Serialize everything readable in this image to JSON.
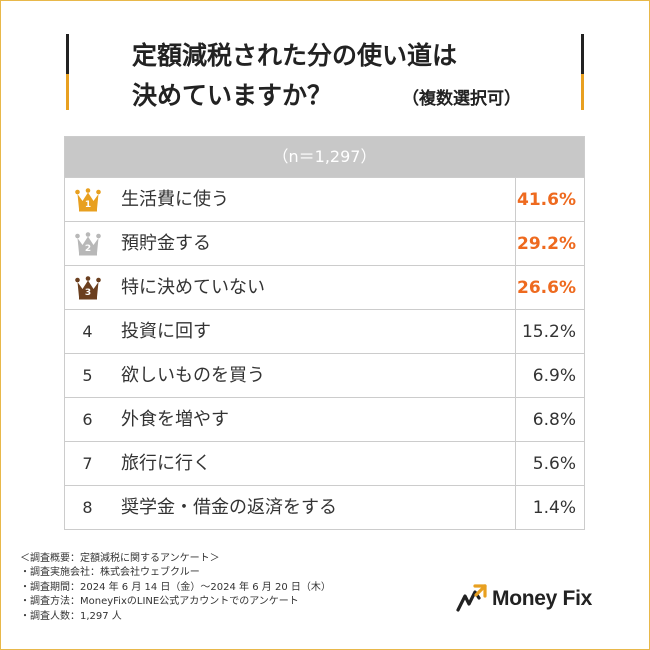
{
  "title": {
    "line1": "定額減税された分の使い道は",
    "line2": "決めていますか？",
    "note": "（複数選択可）"
  },
  "chart_data": {
    "type": "table",
    "header": "（n＝1,297）",
    "rows": [
      {
        "rank": "1",
        "label": "生活費に使う",
        "value": "41.6%"
      },
      {
        "rank": "2",
        "label": "預貯金する",
        "value": "29.2%"
      },
      {
        "rank": "3",
        "label": "特に決めていない",
        "value": "26.6%"
      },
      {
        "rank": "4",
        "label": "投資に回す",
        "value": "15.2%"
      },
      {
        "rank": "5",
        "label": "欲しいものを買う",
        "value": "6.9%"
      },
      {
        "rank": "6",
        "label": "外食を増やす",
        "value": "6.8%"
      },
      {
        "rank": "7",
        "label": "旅行に行く",
        "value": "5.6%"
      },
      {
        "rank": "8",
        "label": "奨学金・借金の返済をする",
        "value": "1.4%"
      }
    ],
    "values": [
      41.6,
      29.2,
      26.6,
      15.2,
      6.9,
      6.8,
      5.6,
      1.4
    ]
  },
  "notes": [
    "＜調査概要：定額減税に関するアンケート＞",
    "・調査実施会社：株式会社ウェブクルー",
    "・調査期間：2024 年 6 月 14 日（金）～2024 年 6 月 20 日（木）",
    "・調査方法：MoneyFixのLINE公式アカウントでのアンケート",
    "・調査人数：1,297 人"
  ],
  "logo": {
    "text": "Money Fix"
  },
  "colors": {
    "accent": "#ee6a1f",
    "gold": "#e8a020",
    "silver": "#b8b8b8",
    "bronze": "#6b3f1f",
    "header_bg": "#c8c8c8"
  }
}
